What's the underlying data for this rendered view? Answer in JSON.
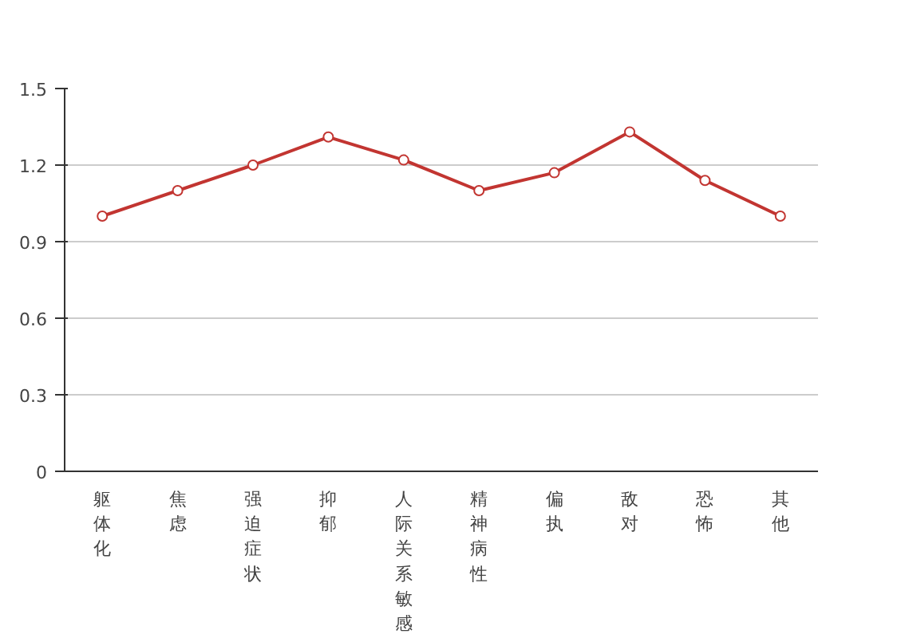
{
  "chart_data": {
    "type": "line",
    "categories": [
      "躯体化",
      "焦虑",
      "强迫症状",
      "抑郁",
      "人际关系敏感",
      "精神病性",
      "偏执",
      "敌对",
      "恐怖",
      "其他"
    ],
    "series": [
      {
        "color": "#c23531",
        "values": [
          1.0,
          1.1,
          1.2,
          1.31,
          1.22,
          1.1,
          1.17,
          1.33,
          1.14,
          1.0
        ]
      }
    ],
    "ylim": [
      0,
      1.5
    ],
    "yticks": [
      0,
      0.3,
      0.6,
      0.9,
      1.2,
      1.5
    ],
    "grid": "y",
    "marker": "circle"
  }
}
